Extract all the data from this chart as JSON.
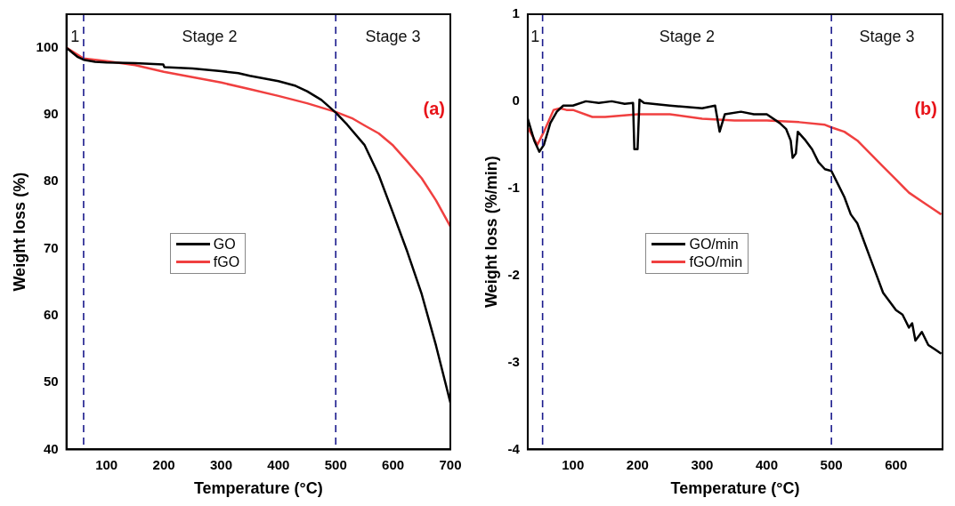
{
  "chart_data": [
    {
      "type": "line",
      "xlabel": "Temperature (°C)",
      "ylabel": "Weight loss (%)",
      "xlim": [
        30,
        700
      ],
      "ylim": [
        40,
        105
      ],
      "xticks": [
        100,
        200,
        300,
        400,
        500,
        600,
        700
      ],
      "yticks": [
        40,
        50,
        60,
        70,
        80,
        90,
        100
      ],
      "legend": "left",
      "grid": false,
      "line_style": "solid",
      "marker": "none",
      "series": [
        {
          "name": "GO",
          "color": "#000000",
          "x": [
            30,
            40,
            50,
            60,
            80,
            100,
            150,
            199,
            201,
            250,
            300,
            330,
            350,
            400,
            430,
            450,
            475,
            500,
            520,
            550,
            575,
            600,
            625,
            650,
            675,
            700
          ],
          "values": [
            100,
            99.3,
            98.6,
            98.2,
            97.9,
            97.8,
            97.7,
            97.5,
            97.1,
            96.9,
            96.5,
            96.2,
            95.8,
            95.0,
            94.3,
            93.5,
            92.2,
            90.3,
            88.5,
            85.5,
            81,
            75.3,
            69.5,
            63.2,
            55.5,
            47
          ]
        },
        {
          "name": "fGO",
          "color": "#f04040",
          "x": [
            30,
            60,
            100,
            150,
            200,
            250,
            300,
            350,
            400,
            450,
            500,
            530,
            550,
            575,
            600,
            625,
            650,
            675,
            700
          ],
          "values": [
            100,
            98.4,
            98,
            97.4,
            96.4,
            95.6,
            94.8,
            93.8,
            92.8,
            91.7,
            90.4,
            89.4,
            88.4,
            87.2,
            85.4,
            83,
            80.5,
            77.2,
            73.3
          ]
        }
      ],
      "ref_lines": [
        {
          "axis": "x",
          "value": 60,
          "color": "#1a1a8c",
          "line_style": "dashed"
        },
        {
          "axis": "x",
          "value": 500,
          "color": "#1a1a8c",
          "line_style": "dashed"
        }
      ],
      "annotations": [
        "1",
        "Stage 2",
        "Stage 3",
        "(a)"
      ]
    },
    {
      "type": "line",
      "xlabel": "Temperature (°C)",
      "ylabel": "Weight loss (%/min)",
      "xlim": [
        30,
        672
      ],
      "ylim": [
        -4,
        1
      ],
      "xticks": [
        100,
        200,
        300,
        400,
        500,
        600
      ],
      "yticks": [
        -4,
        -3,
        -2,
        -1,
        0,
        1
      ],
      "legend": "left",
      "grid": false,
      "line_style": "solid",
      "marker": "none",
      "series": [
        {
          "name": "GO/min",
          "color": "#000000",
          "x": [
            30,
            40,
            48,
            55,
            65,
            75,
            85,
            100,
            120,
            140,
            160,
            180,
            193,
            195,
            200,
            203,
            210,
            250,
            300,
            320,
            327,
            335,
            360,
            380,
            400,
            420,
            430,
            437,
            440,
            445,
            448,
            460,
            470,
            480,
            490,
            500,
            510,
            520,
            530,
            540,
            550,
            560,
            570,
            580,
            590,
            600,
            610,
            620,
            625,
            630,
            640,
            650,
            660,
            670
          ],
          "values": [
            -0.2,
            -0.45,
            -0.58,
            -0.5,
            -0.25,
            -0.12,
            -0.05,
            -0.05,
            0.0,
            -0.02,
            0.0,
            -0.03,
            -0.02,
            -0.55,
            -0.55,
            0.02,
            -0.02,
            -0.05,
            -0.08,
            -0.05,
            -0.35,
            -0.15,
            -0.12,
            -0.15,
            -0.15,
            -0.25,
            -0.32,
            -0.45,
            -0.65,
            -0.6,
            -0.35,
            -0.45,
            -0.55,
            -0.7,
            -0.78,
            -0.8,
            -0.95,
            -1.1,
            -1.3,
            -1.4,
            -1.6,
            -1.8,
            -2.0,
            -2.2,
            -2.3,
            -2.4,
            -2.45,
            -2.6,
            -2.55,
            -2.75,
            -2.65,
            -2.8,
            -2.85,
            -2.9
          ]
        },
        {
          "name": "fGO/min",
          "color": "#f04040",
          "x": [
            30,
            45,
            55,
            70,
            80,
            90,
            100,
            130,
            150,
            200,
            250,
            300,
            350,
            400,
            450,
            490,
            500,
            520,
            540,
            560,
            580,
            600,
            620,
            640,
            660,
            670
          ],
          "values": [
            -0.3,
            -0.5,
            -0.35,
            -0.1,
            -0.08,
            -0.1,
            -0.1,
            -0.18,
            -0.18,
            -0.15,
            -0.15,
            -0.2,
            -0.22,
            -0.22,
            -0.24,
            -0.27,
            -0.3,
            -0.35,
            -0.45,
            -0.6,
            -0.75,
            -0.9,
            -1.05,
            -1.15,
            -1.25,
            -1.3
          ]
        }
      ],
      "ref_lines": [
        {
          "axis": "x",
          "value": 53,
          "color": "#1a1a8c",
          "line_style": "dashed"
        },
        {
          "axis": "x",
          "value": 500,
          "color": "#1a1a8c",
          "line_style": "dashed"
        }
      ],
      "annotations": [
        "1",
        "Stage 2",
        "Stage 3",
        "(b)"
      ]
    }
  ]
}
